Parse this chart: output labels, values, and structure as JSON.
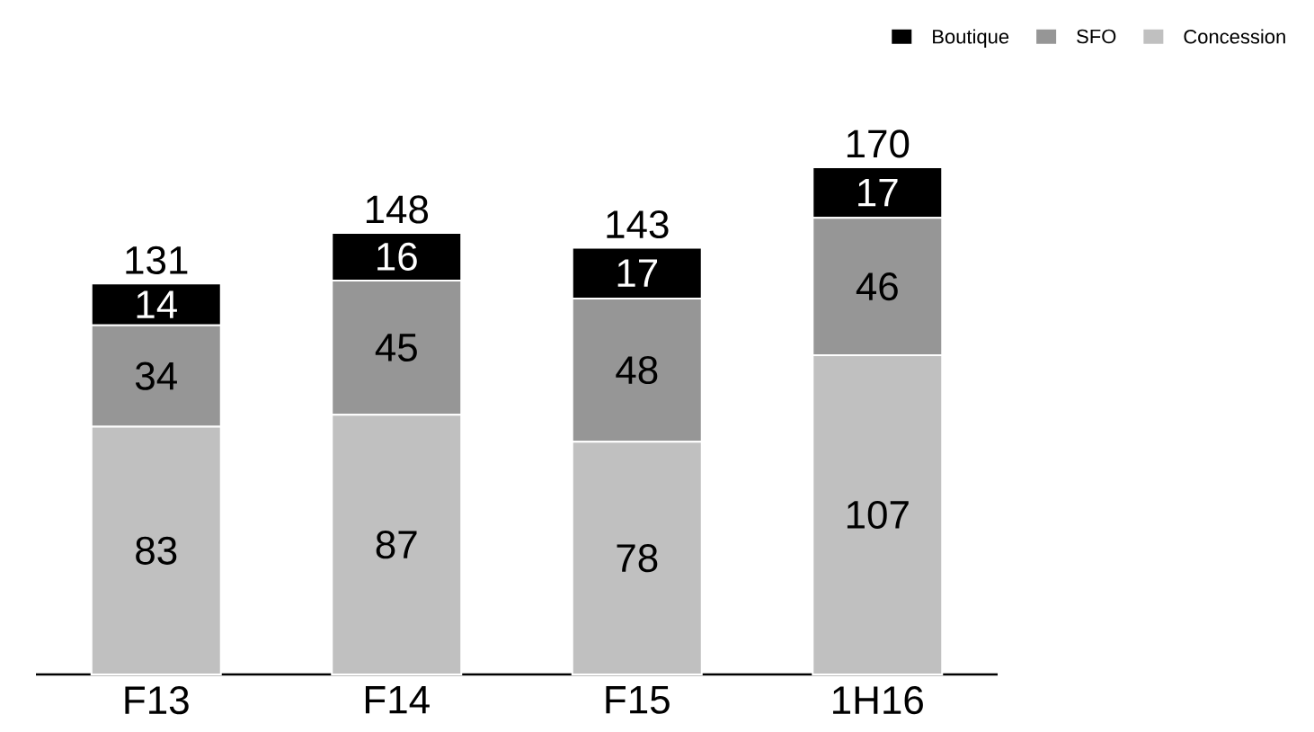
{
  "chart_data": {
    "type": "bar",
    "stacked": true,
    "categories": [
      "F13",
      "F14",
      "F15",
      "1H16"
    ],
    "series": [
      {
        "name": "Concession",
        "color": "#c0c0c0",
        "values": [
          83,
          87,
          78,
          107
        ]
      },
      {
        "name": "SFO",
        "color": "#969696",
        "values": [
          34,
          45,
          48,
          46
        ]
      },
      {
        "name": "Boutique",
        "color": "#000000",
        "values": [
          14,
          16,
          17,
          17
        ]
      }
    ],
    "data_labels": true,
    "totals": [
      "131",
      "148",
      "143",
      "170"
    ],
    "legend": "top right",
    "tick_labels": "x",
    "grid": false
  }
}
